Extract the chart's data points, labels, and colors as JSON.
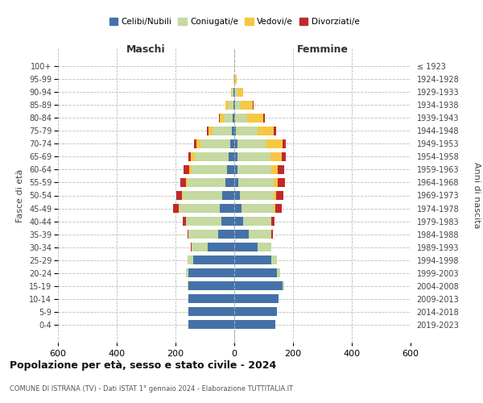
{
  "age_groups": [
    "0-4",
    "5-9",
    "10-14",
    "15-19",
    "20-24",
    "25-29",
    "30-34",
    "35-39",
    "40-44",
    "45-49",
    "50-54",
    "55-59",
    "60-64",
    "65-69",
    "70-74",
    "75-79",
    "80-84",
    "85-89",
    "90-94",
    "95-99",
    "100+"
  ],
  "birth_years": [
    "2019-2023",
    "2014-2018",
    "2009-2013",
    "2004-2008",
    "1999-2003",
    "1994-1998",
    "1989-1993",
    "1984-1988",
    "1979-1983",
    "1974-1978",
    "1969-1973",
    "1964-1968",
    "1959-1963",
    "1954-1958",
    "1949-1953",
    "1944-1948",
    "1939-1943",
    "1934-1938",
    "1929-1933",
    "1924-1928",
    "≤ 1923"
  ],
  "colors": {
    "celibe": "#4472a8",
    "coniugato": "#c5d9a0",
    "vedovo": "#f5c842",
    "divorziato": "#c0292a"
  },
  "maschi": {
    "celibe": [
      155,
      155,
      155,
      155,
      155,
      140,
      90,
      55,
      45,
      50,
      40,
      30,
      25,
      20,
      15,
      8,
      5,
      4,
      2,
      1,
      0
    ],
    "coniugato": [
      0,
      0,
      0,
      5,
      10,
      20,
      55,
      100,
      120,
      135,
      135,
      130,
      120,
      115,
      100,
      65,
      30,
      15,
      5,
      1,
      0
    ],
    "vedovo": [
      0,
      0,
      0,
      0,
      0,
      0,
      0,
      0,
      0,
      3,
      4,
      5,
      8,
      12,
      15,
      15,
      15,
      10,
      5,
      1,
      0
    ],
    "divorziato": [
      0,
      0,
      0,
      0,
      0,
      0,
      2,
      5,
      10,
      20,
      18,
      18,
      20,
      10,
      8,
      4,
      2,
      0,
      0,
      0,
      0
    ]
  },
  "femmine": {
    "nubile": [
      140,
      145,
      150,
      165,
      145,
      125,
      80,
      50,
      30,
      25,
      20,
      15,
      12,
      12,
      10,
      5,
      4,
      3,
      2,
      1,
      0
    ],
    "coniugata": [
      0,
      0,
      0,
      5,
      10,
      20,
      45,
      75,
      95,
      110,
      115,
      120,
      115,
      110,
      100,
      75,
      40,
      20,
      8,
      2,
      0
    ],
    "vedova": [
      0,
      0,
      0,
      0,
      0,
      0,
      0,
      1,
      2,
      5,
      8,
      12,
      22,
      40,
      55,
      55,
      55,
      40,
      20,
      5,
      1
    ],
    "divorziata": [
      0,
      0,
      0,
      0,
      0,
      0,
      2,
      5,
      10,
      22,
      25,
      25,
      22,
      12,
      10,
      8,
      4,
      2,
      0,
      0,
      0
    ]
  },
  "xlim": 600,
  "title": "Popolazione per età, sesso e stato civile - 2024",
  "subtitle": "COMUNE DI ISTRANA (TV) - Dati ISTAT 1° gennaio 2024 - Elaborazione TUTTITALIA.IT",
  "ylabel": "Fasce di età",
  "ylabel_right": "Anni di nascita",
  "legend_labels": [
    "Celibi/Nubili",
    "Coniugati/e",
    "Vedovi/e",
    "Divorziati/e"
  ]
}
